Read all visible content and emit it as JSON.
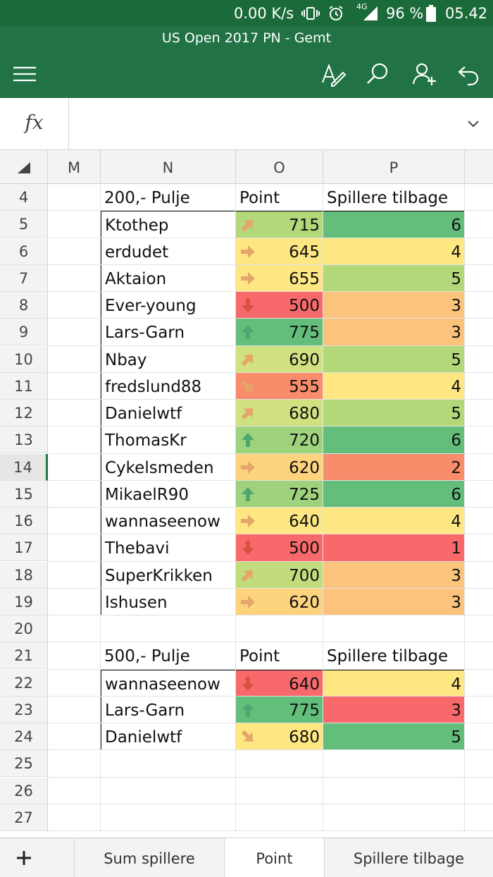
{
  "status_bar": {
    "speed": "0.00 K/s",
    "network": "4G",
    "battery": "96 %",
    "time": "05.42"
  },
  "app": {
    "title": "US Open 2017 PN - Gemt",
    "menu_icon": "hamburger-icon",
    "actions": [
      "edit-pen-icon",
      "search-icon",
      "share-person-icon",
      "undo-icon"
    ]
  },
  "formula_bar": {
    "label": "fx",
    "value": ""
  },
  "columns": [
    "M",
    "N",
    "O",
    "P"
  ],
  "rows": [
    "4",
    "5",
    "6",
    "7",
    "8",
    "9",
    "10",
    "11",
    "12",
    "13",
    "14",
    "15",
    "16",
    "17",
    "18",
    "19",
    "20",
    "21",
    "22",
    "23",
    "24",
    "25",
    "26",
    "27"
  ],
  "selected_row": "14",
  "colors": {
    "green": "#63be7b",
    "light_green": "#b3d879",
    "yellow_green": "#d0e280",
    "yellow": "#fee782",
    "light_orange": "#fbc37b",
    "orange": "#f98c6b",
    "red": "#f8696b"
  },
  "table1": {
    "header": {
      "name": "200,- Pulje",
      "points": "Point",
      "remaining": "Spillere tilbage"
    },
    "rows": [
      {
        "name": "Ktothep",
        "points": "715",
        "remaining": "6",
        "arrow": "up-right",
        "points_color": "#b3d879",
        "remaining_color": "#63be7b"
      },
      {
        "name": "erdudet",
        "points": "645",
        "remaining": "4",
        "arrow": "right",
        "points_color": "#fee782",
        "remaining_color": "#fee782"
      },
      {
        "name": "Aktaion",
        "points": "655",
        "remaining": "5",
        "arrow": "right",
        "points_color": "#fee782",
        "remaining_color": "#b3d879"
      },
      {
        "name": "Ever-young",
        "points": "500",
        "remaining": "3",
        "arrow": "down",
        "points_color": "#f8696b",
        "remaining_color": "#fbc37b"
      },
      {
        "name": "Lars-Garn",
        "points": "775",
        "remaining": "3",
        "arrow": "up",
        "points_color": "#63be7b",
        "remaining_color": "#fbc37b"
      },
      {
        "name": "Nbay",
        "points": "690",
        "remaining": "5",
        "arrow": "up-right",
        "points_color": "#d0e280",
        "remaining_color": "#b3d879"
      },
      {
        "name": "fredslund88",
        "points": "555",
        "remaining": "4",
        "arrow": "down-right",
        "points_color": "#f98c6b",
        "remaining_color": "#fee782"
      },
      {
        "name": "Danielwtf",
        "points": "680",
        "remaining": "5",
        "arrow": "up-right",
        "points_color": "#d0e280",
        "remaining_color": "#b3d879"
      },
      {
        "name": "ThomasKr",
        "points": "720",
        "remaining": "6",
        "arrow": "up",
        "points_color": "#9ed27c",
        "remaining_color": "#63be7b"
      },
      {
        "name": "Cykelsmeden",
        "points": "620",
        "remaining": "2",
        "arrow": "right",
        "points_color": "#fdd37d",
        "remaining_color": "#f98c6b"
      },
      {
        "name": "MikaelR90",
        "points": "725",
        "remaining": "6",
        "arrow": "up",
        "points_color": "#9ed27c",
        "remaining_color": "#63be7b"
      },
      {
        "name": "wannaseenow",
        "points": "640",
        "remaining": "4",
        "arrow": "right",
        "points_color": "#fee782",
        "remaining_color": "#fee782"
      },
      {
        "name": "Thebavi",
        "points": "500",
        "remaining": "1",
        "arrow": "down",
        "points_color": "#f8696b",
        "remaining_color": "#f8696b"
      },
      {
        "name": "SuperKrikken",
        "points": "700",
        "remaining": "3",
        "arrow": "up-right",
        "points_color": "#c2dc7d",
        "remaining_color": "#fbc37b"
      },
      {
        "name": "Ishusen",
        "points": "620",
        "remaining": "3",
        "arrow": "right",
        "points_color": "#fdd37d",
        "remaining_color": "#fbc37b"
      }
    ]
  },
  "table2": {
    "header": {
      "name": "500,- Pulje",
      "points": "Point",
      "remaining": "Spillere tilbage"
    },
    "rows": [
      {
        "name": "wannaseenow",
        "points": "640",
        "remaining": "4",
        "arrow": "down",
        "points_color": "#f8696b",
        "remaining_color": "#fee782"
      },
      {
        "name": "Lars-Garn",
        "points": "775",
        "remaining": "3",
        "arrow": "up",
        "points_color": "#63be7b",
        "remaining_color": "#f8696b"
      },
      {
        "name": "Danielwtf",
        "points": "680",
        "remaining": "5",
        "arrow": "down-right",
        "points_color": "#fee782",
        "remaining_color": "#63be7b"
      }
    ]
  },
  "sheet_tabs": [
    {
      "label": "Sum spillere",
      "active": false
    },
    {
      "label": "Point",
      "active": true
    },
    {
      "label": "Spillere tilbage",
      "active": false
    }
  ],
  "add_sheet_icon": "plus-icon"
}
